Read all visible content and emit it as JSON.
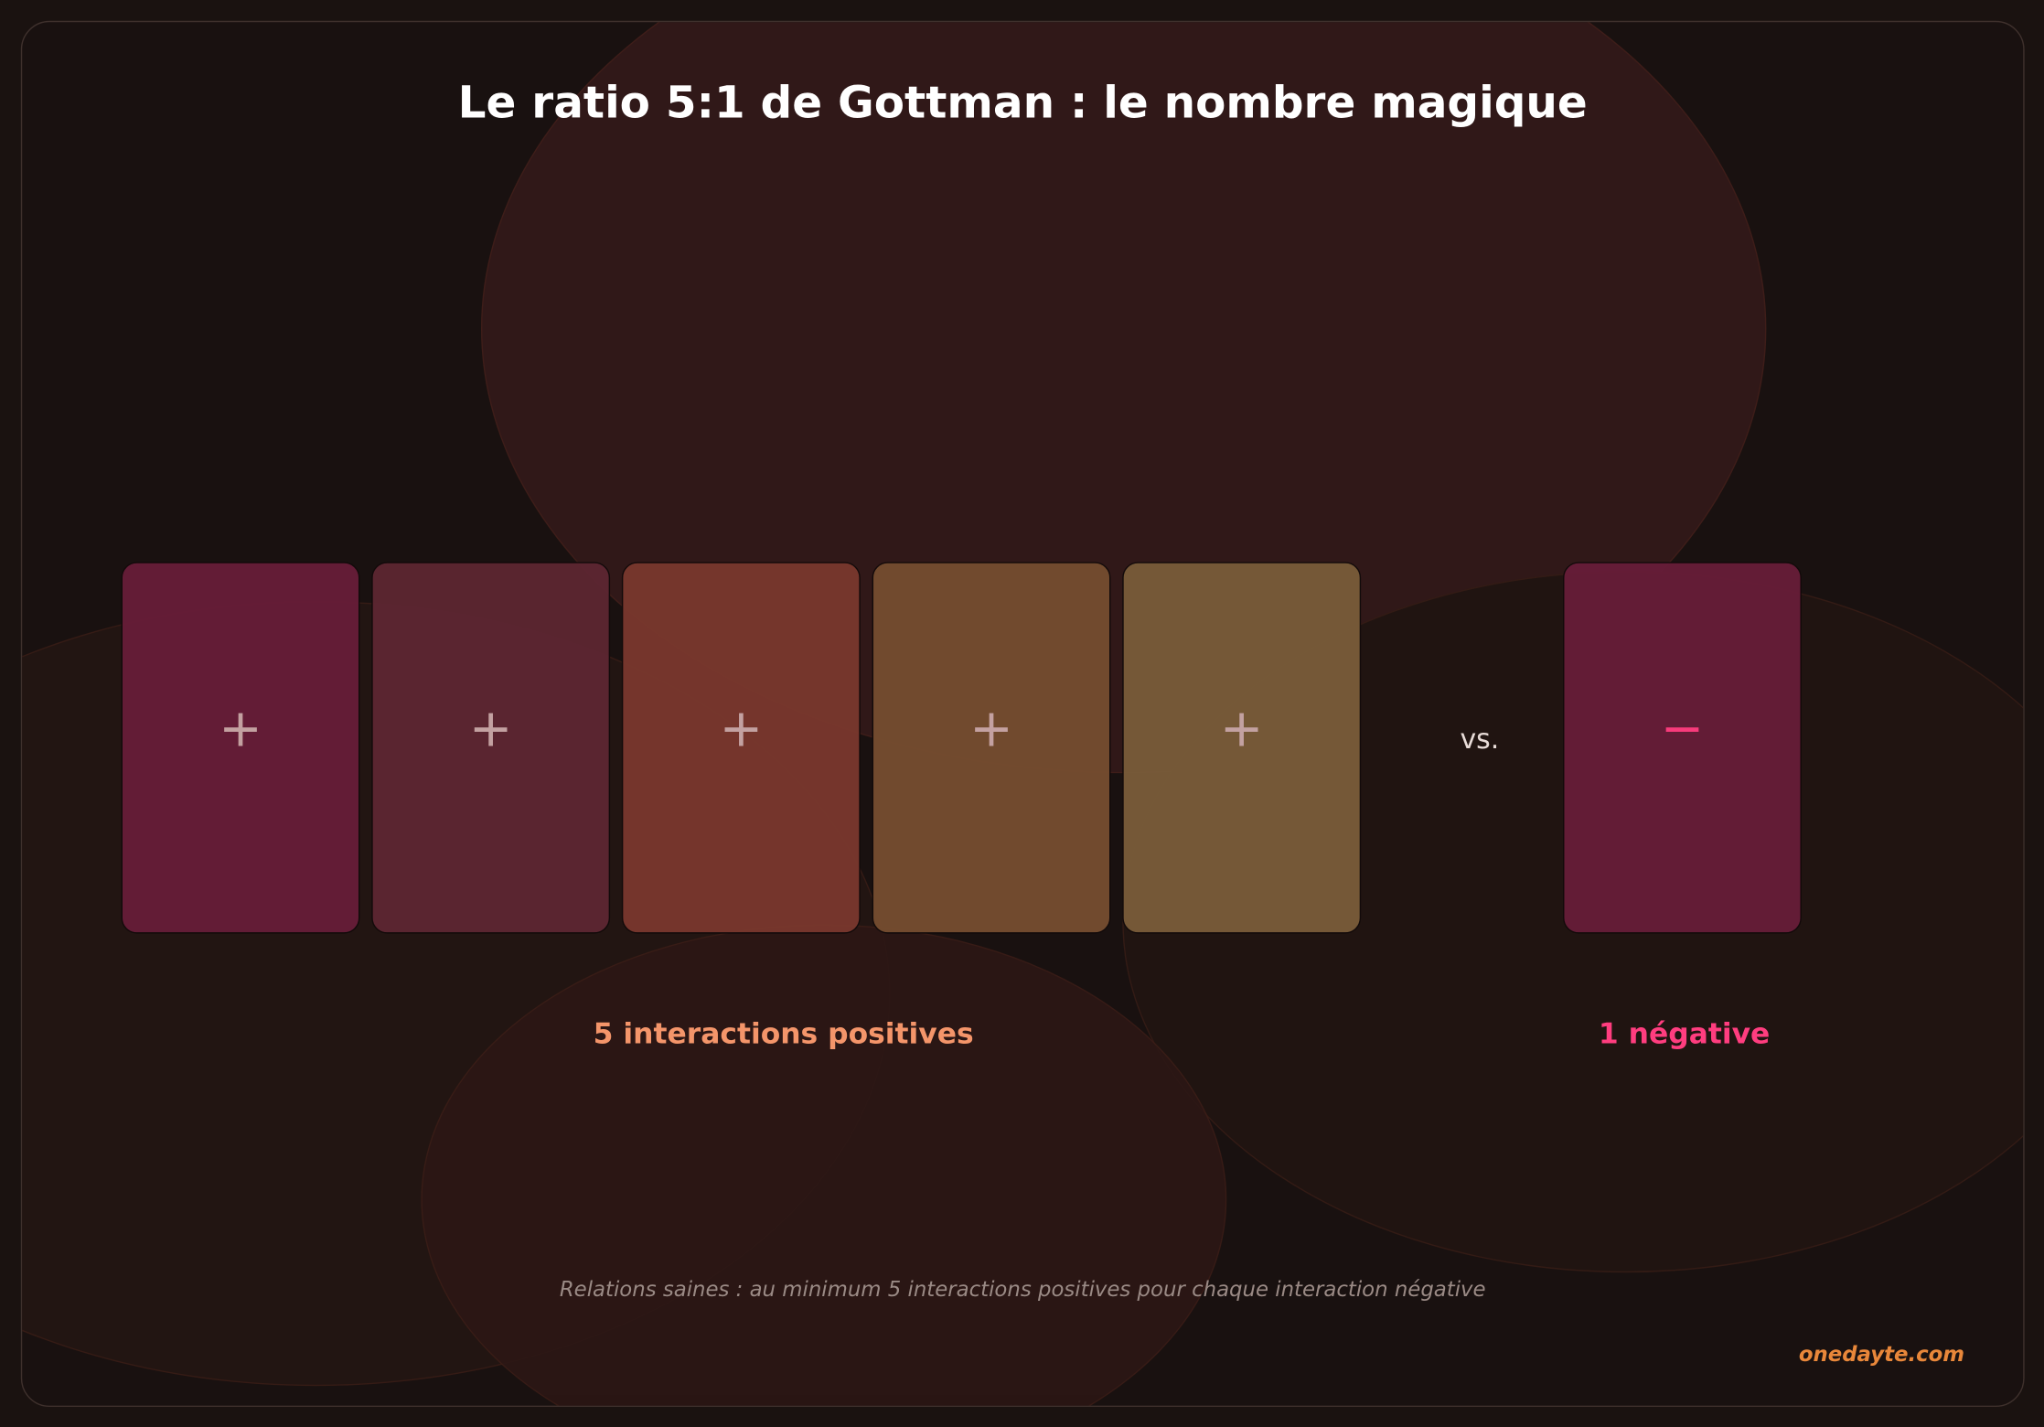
{
  "title": "Le ratio 5:1 de Gottman : le nombre magique",
  "positive_cards": [
    {
      "symbol": "+",
      "color": "#661d38"
    },
    {
      "symbol": "+",
      "color": "#5c2631"
    },
    {
      "symbol": "+",
      "color": "#78372d"
    },
    {
      "symbol": "+",
      "color": "#744c2f"
    },
    {
      "symbol": "+",
      "color": "#785b39"
    }
  ],
  "versus": "vs.",
  "negative_card": {
    "symbol": "−",
    "color": "#661d38",
    "symbol_color": "#ff3d7f"
  },
  "positive_label": "5 interactions positives",
  "negative_label": "1 négative",
  "footer_note": "Relations saines : au minimum 5 interactions positives pour chaque interaction négative",
  "brand": "onedayte.com",
  "colors": {
    "positive_label": "#f4956a",
    "negative_label": "#ff3d7f",
    "brand": "#e8873a"
  }
}
